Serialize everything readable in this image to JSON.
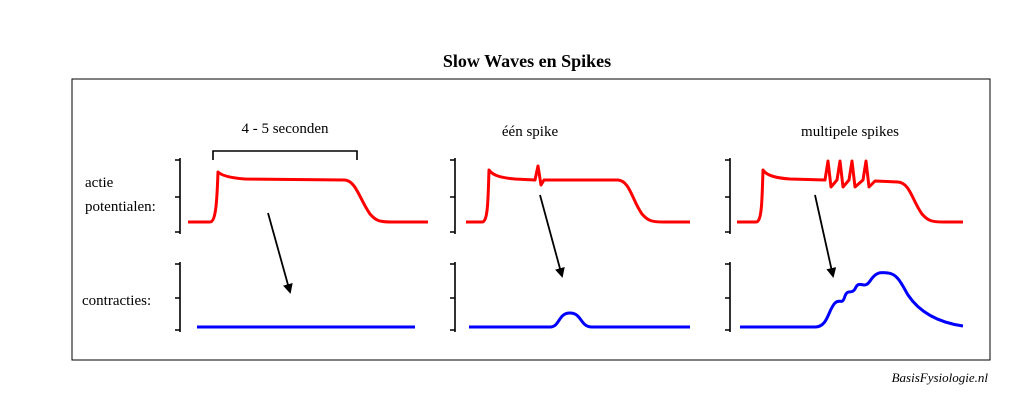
{
  "title": "Slow Waves en Spikes",
  "panels": [
    {
      "label": "4 - 5 seconden"
    },
    {
      "label": "één spike"
    },
    {
      "label": "multipele spikes"
    }
  ],
  "row_labels": {
    "action_potentials": [
      "actie",
      "potentialen:"
    ],
    "contractions": "contracties:"
  },
  "credit": "BasisFysiologie.nl"
}
